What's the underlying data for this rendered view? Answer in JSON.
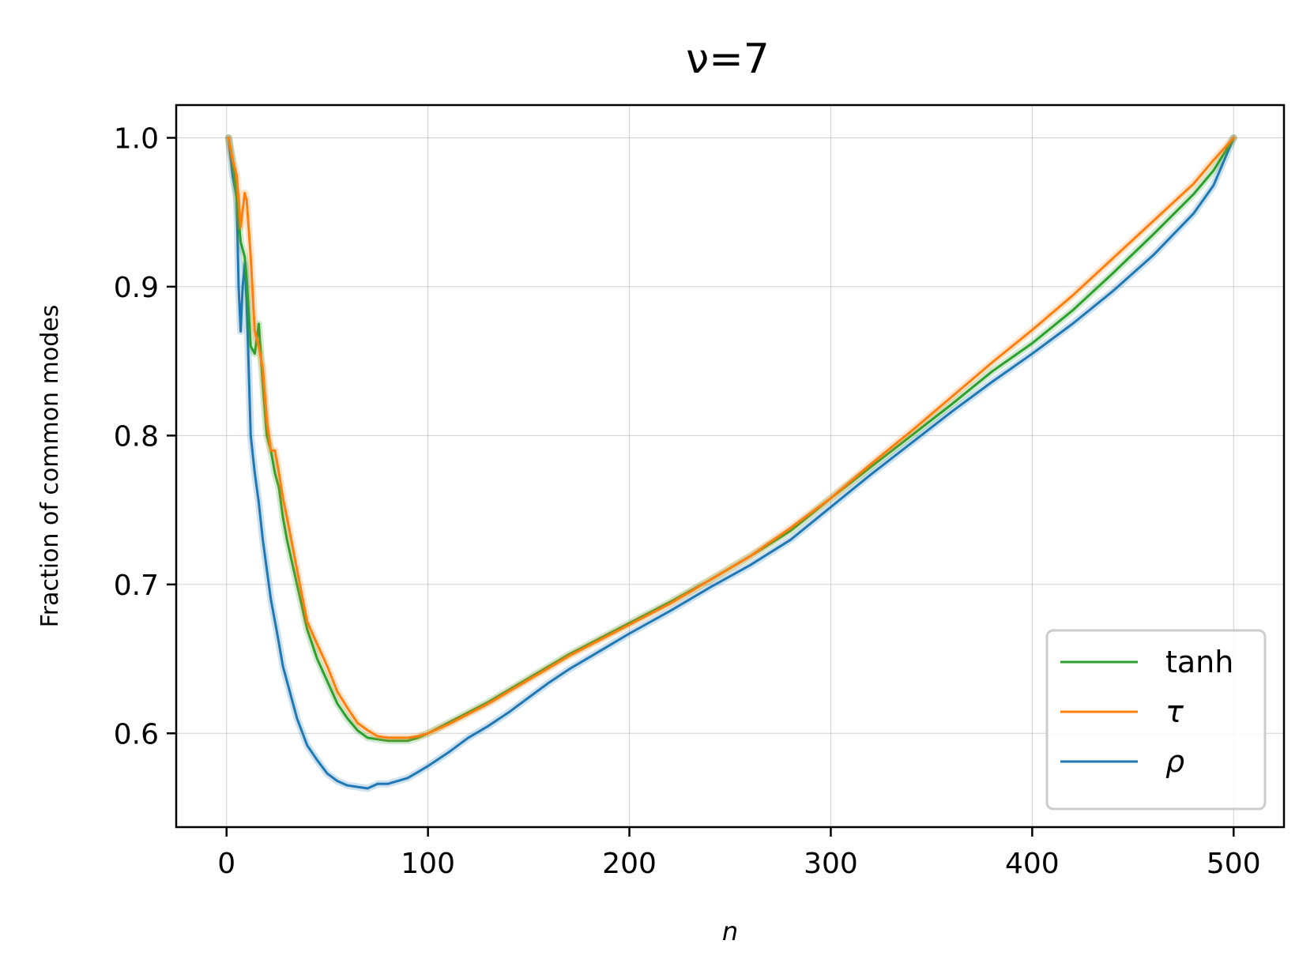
{
  "chart_data": {
    "type": "line",
    "title": "ν=7",
    "xlabel": "n",
    "ylabel": "Fraction of common modes",
    "xlim": [
      -25,
      525
    ],
    "ylim": [
      0.537,
      1.022
    ],
    "xticks": [
      0,
      100,
      200,
      300,
      400,
      500
    ],
    "xtick_labels": [
      "0",
      "100",
      "200",
      "300",
      "400",
      "500"
    ],
    "yticks": [
      0.6,
      0.7,
      0.8,
      0.9,
      1.0
    ],
    "ytick_labels": [
      "0.6",
      "0.7",
      "0.8",
      "0.9",
      "1.0"
    ],
    "grid": true,
    "legend_position": "lower right",
    "series": [
      {
        "name": "tanh",
        "color": "#2ca02c",
        "x": [
          1,
          3,
          5,
          7,
          9,
          10,
          12,
          14,
          16,
          18,
          20,
          22,
          24,
          26,
          28,
          30,
          35,
          40,
          45,
          50,
          55,
          60,
          65,
          70,
          75,
          80,
          85,
          90,
          95,
          100,
          110,
          120,
          130,
          140,
          150,
          160,
          170,
          180,
          190,
          200,
          220,
          240,
          260,
          280,
          300,
          320,
          340,
          360,
          380,
          400,
          420,
          440,
          460,
          480,
          490,
          500
        ],
        "y": [
          1.0,
          0.985,
          0.96,
          0.93,
          0.92,
          0.905,
          0.86,
          0.855,
          0.875,
          0.835,
          0.8,
          0.79,
          0.775,
          0.765,
          0.745,
          0.73,
          0.7,
          0.67,
          0.65,
          0.635,
          0.62,
          0.61,
          0.602,
          0.597,
          0.596,
          0.595,
          0.595,
          0.595,
          0.597,
          0.6,
          0.607,
          0.614,
          0.621,
          0.629,
          0.637,
          0.645,
          0.653,
          0.66,
          0.667,
          0.674,
          0.688,
          0.703,
          0.719,
          0.736,
          0.758,
          0.779,
          0.8,
          0.821,
          0.843,
          0.862,
          0.884,
          0.909,
          0.935,
          0.962,
          0.978,
          1.0
        ]
      },
      {
        "name": "τ",
        "color": "#ff7f0e",
        "x": [
          1,
          3,
          5,
          7,
          9,
          10,
          12,
          14,
          16,
          18,
          20,
          22,
          24,
          26,
          28,
          30,
          35,
          40,
          45,
          50,
          55,
          60,
          65,
          70,
          75,
          80,
          85,
          90,
          95,
          100,
          110,
          120,
          130,
          140,
          150,
          160,
          170,
          180,
          190,
          200,
          220,
          240,
          260,
          280,
          300,
          320,
          340,
          360,
          380,
          400,
          420,
          440,
          460,
          480,
          490,
          500
        ],
        "y": [
          1.0,
          0.985,
          0.975,
          0.94,
          0.963,
          0.958,
          0.92,
          0.87,
          0.86,
          0.845,
          0.81,
          0.79,
          0.79,
          0.775,
          0.758,
          0.745,
          0.71,
          0.675,
          0.66,
          0.645,
          0.628,
          0.617,
          0.607,
          0.602,
          0.598,
          0.597,
          0.597,
          0.597,
          0.598,
          0.6,
          0.606,
          0.613,
          0.62,
          0.628,
          0.636,
          0.644,
          0.652,
          0.659,
          0.666,
          0.673,
          0.687,
          0.703,
          0.719,
          0.738,
          0.758,
          0.781,
          0.803,
          0.826,
          0.849,
          0.871,
          0.894,
          0.919,
          0.944,
          0.969,
          0.985,
          1.0
        ]
      },
      {
        "name": "ρ",
        "color": "#1f77b4",
        "x": [
          1,
          3,
          5,
          6,
          7,
          8,
          9,
          10,
          12,
          14,
          16,
          18,
          20,
          22,
          25,
          28,
          30,
          35,
          40,
          45,
          50,
          55,
          60,
          65,
          70,
          75,
          80,
          85,
          90,
          95,
          100,
          110,
          120,
          130,
          140,
          150,
          160,
          170,
          180,
          190,
          200,
          220,
          240,
          260,
          280,
          300,
          320,
          340,
          360,
          380,
          400,
          420,
          440,
          460,
          480,
          490,
          500
        ],
        "y": [
          1.0,
          0.975,
          0.96,
          0.9,
          0.87,
          0.9,
          0.915,
          0.89,
          0.8,
          0.775,
          0.755,
          0.73,
          0.71,
          0.69,
          0.668,
          0.645,
          0.635,
          0.61,
          0.592,
          0.582,
          0.573,
          0.568,
          0.565,
          0.564,
          0.563,
          0.566,
          0.566,
          0.568,
          0.57,
          0.574,
          0.578,
          0.587,
          0.597,
          0.605,
          0.614,
          0.624,
          0.634,
          0.643,
          0.651,
          0.659,
          0.667,
          0.682,
          0.698,
          0.713,
          0.73,
          0.752,
          0.774,
          0.795,
          0.816,
          0.836,
          0.855,
          0.875,
          0.897,
          0.921,
          0.949,
          0.968,
          1.0
        ]
      }
    ]
  }
}
